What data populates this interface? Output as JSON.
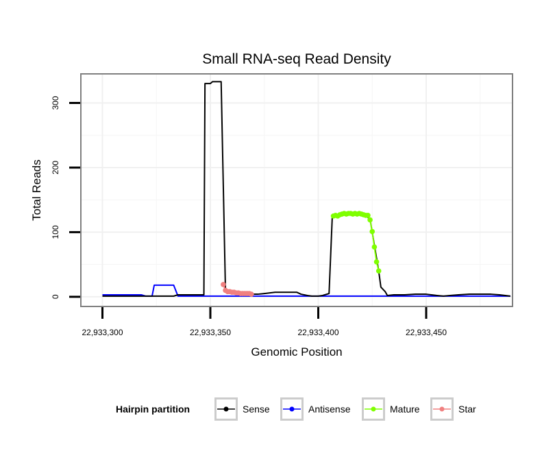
{
  "chart_data": {
    "type": "line",
    "title": "Small RNA-seq Read Density",
    "xlabel": "Genomic Position",
    "ylabel": "Total Reads",
    "xlim": [
      22933290,
      22933490
    ],
    "ylim": [
      -15,
      345
    ],
    "x_ticks": [
      22933300,
      22933350,
      22933400,
      22933450
    ],
    "x_tick_labels": [
      "22,933,300",
      "22,933,350",
      "22,933,400",
      "22,933,450"
    ],
    "y_ticks": [
      0,
      100,
      200,
      300
    ],
    "y_tick_labels": [
      "0",
      "100",
      "200",
      "300"
    ],
    "grid": true,
    "legend": {
      "title": "Hairpin partition",
      "position": "bottom",
      "entries": [
        "Sense",
        "Antisense",
        "Mature",
        "Star"
      ]
    },
    "series": [
      {
        "name": "Sense",
        "color": "#000000",
        "markers": false,
        "points": [
          [
            22933300,
            1
          ],
          [
            22933318,
            1
          ],
          [
            22933325,
            1
          ],
          [
            22933333,
            1
          ],
          [
            22933335,
            3
          ],
          [
            22933340,
            3
          ],
          [
            22933347,
            3
          ],
          [
            22933347.5,
            330
          ],
          [
            22933350,
            330
          ],
          [
            22933351,
            333
          ],
          [
            22933355,
            333
          ],
          [
            22933357,
            10
          ],
          [
            22933360,
            6
          ],
          [
            22933368,
            4
          ],
          [
            22933372,
            4
          ],
          [
            22933375,
            5
          ],
          [
            22933380,
            7
          ],
          [
            22933390,
            7
          ],
          [
            22933392,
            4
          ],
          [
            22933395,
            2
          ],
          [
            22933397,
            1
          ],
          [
            22933400,
            1
          ],
          [
            22933402,
            2
          ],
          [
            22933405,
            5
          ],
          [
            22933406.5,
            125
          ],
          [
            22933410,
            125
          ],
          [
            22933411,
            128
          ],
          [
            22933421,
            128
          ],
          [
            22933424,
            120
          ],
          [
            22933426,
            80
          ],
          [
            22933428,
            40
          ],
          [
            22933429,
            15
          ],
          [
            22933431,
            8
          ],
          [
            22933432,
            2
          ],
          [
            22933435,
            3
          ],
          [
            22933440,
            3
          ],
          [
            22933445,
            4
          ],
          [
            22933450,
            4
          ],
          [
            22933455,
            2
          ],
          [
            22933458,
            1
          ],
          [
            22933461,
            2
          ],
          [
            22933465,
            3
          ],
          [
            22933470,
            4
          ],
          [
            22933480,
            4
          ],
          [
            22933484,
            3
          ],
          [
            22933489,
            1
          ]
        ]
      },
      {
        "name": "Antisense",
        "color": "#0000FF",
        "markers": false,
        "points": [
          [
            22933300,
            3
          ],
          [
            22933318,
            3
          ],
          [
            22933320,
            1
          ],
          [
            22933323,
            1
          ],
          [
            22933324,
            18
          ],
          [
            22933333,
            18
          ],
          [
            22933335,
            1
          ],
          [
            22933489,
            1
          ]
        ]
      },
      {
        "name": "Mature",
        "color": "#7FFF00",
        "markers": true,
        "points": [
          [
            22933407,
            125
          ],
          [
            22933408,
            126
          ],
          [
            22933409,
            125
          ],
          [
            22933410,
            127
          ],
          [
            22933411,
            128
          ],
          [
            22933412,
            129
          ],
          [
            22933413,
            128
          ],
          [
            22933414,
            129
          ],
          [
            22933415,
            129
          ],
          [
            22933416,
            128
          ],
          [
            22933417,
            129
          ],
          [
            22933418,
            128
          ],
          [
            22933419,
            129
          ],
          [
            22933420,
            128
          ],
          [
            22933421,
            127
          ],
          [
            22933422,
            126
          ],
          [
            22933423,
            126
          ],
          [
            22933424,
            119
          ],
          [
            22933425,
            101
          ],
          [
            22933426,
            77
          ],
          [
            22933427,
            54
          ],
          [
            22933428,
            40
          ]
        ]
      },
      {
        "name": "Star",
        "color": "#F08080",
        "markers": true,
        "points": [
          [
            22933356,
            19
          ],
          [
            22933357,
            10
          ],
          [
            22933358,
            8
          ],
          [
            22933359,
            8
          ],
          [
            22933360,
            7
          ],
          [
            22933361,
            7
          ],
          [
            22933362,
            6
          ],
          [
            22933363,
            6
          ],
          [
            22933364,
            5
          ],
          [
            22933365,
            5
          ],
          [
            22933366,
            5
          ],
          [
            22933367,
            5
          ],
          [
            22933368,
            5
          ],
          [
            22933369,
            4
          ]
        ]
      }
    ]
  }
}
